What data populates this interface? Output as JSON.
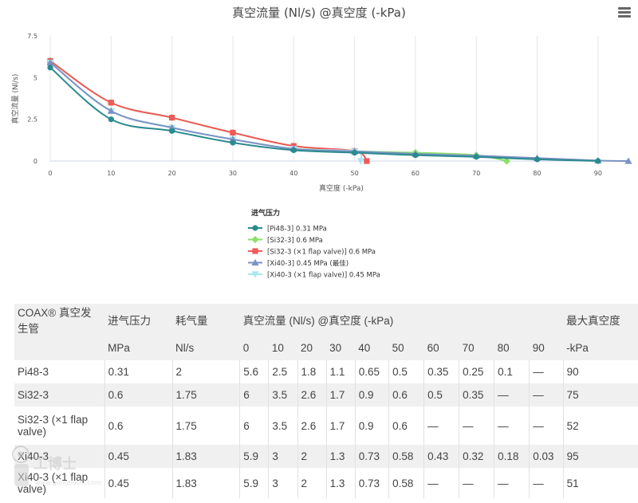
{
  "chart_data": {
    "type": "line",
    "title": "真空流量 (Nl/s) @真空度 (-kPa)",
    "xlabel": "真空度 (-kPa)",
    "ylabel": "真空流量 (Nl/s)",
    "xlim": [
      0,
      95
    ],
    "ylim": [
      0,
      7.5
    ],
    "xticks": [
      0,
      10,
      20,
      30,
      40,
      50,
      60,
      70,
      80,
      90
    ],
    "yticks": [
      0,
      2.5,
      5,
      7.5
    ],
    "grid": "vertical",
    "legend_title": "进气压力",
    "legend_position": "bottom-center",
    "series": [
      {
        "name": "[Pi48-3] 0.31 MPa",
        "color": "#2a8a8f",
        "marker": "circle",
        "x": [
          0,
          10,
          20,
          30,
          40,
          50,
          60,
          70,
          80,
          90
        ],
        "y": [
          5.6,
          2.5,
          1.8,
          1.1,
          0.65,
          0.5,
          0.35,
          0.25,
          0.1,
          0
        ]
      },
      {
        "name": "[Si32-3] 0.6 MPa",
        "color": "#8be06a",
        "marker": "diamond",
        "x": [
          0,
          10,
          20,
          30,
          40,
          50,
          60,
          70,
          75
        ],
        "y": [
          6,
          3.5,
          2.6,
          1.7,
          0.9,
          0.6,
          0.5,
          0.35,
          0
        ]
      },
      {
        "name": "[Si32-3 (×1 flap valve)] 0.6 MPa",
        "color": "#ef5a5a",
        "marker": "square",
        "x": [
          0,
          10,
          20,
          30,
          40,
          50,
          52
        ],
        "y": [
          6,
          3.5,
          2.6,
          1.7,
          0.9,
          0.6,
          0
        ]
      },
      {
        "name": "[Xi40-3] 0.45 MPa (最佳)",
        "color": "#7a92c4",
        "marker": "triangle",
        "x": [
          0,
          10,
          20,
          30,
          40,
          50,
          60,
          70,
          80,
          90,
          95
        ],
        "y": [
          5.9,
          3,
          2,
          1.3,
          0.73,
          0.58,
          0.43,
          0.32,
          0.18,
          0.03,
          0
        ]
      },
      {
        "name": "[Xi40-3 (×1 flap valve)] 0.45 MPa",
        "color": "#a9e6ee",
        "marker": "triangle-down",
        "x": [
          0,
          10,
          20,
          30,
          40,
          50,
          51
        ],
        "y": [
          5.9,
          3,
          2,
          1.3,
          0.73,
          0.58,
          0
        ]
      }
    ]
  },
  "ui": {
    "menu_icon": "hamburger-menu-icon",
    "watermark_text": "工博士",
    "watermark_url": "www.gongboshi.com"
  },
  "table": {
    "header_row1": [
      "COAX® 真空发生管",
      "进气压力",
      "耗气量",
      "真空流量 (Nl/s) @真空度 (-kPa)",
      "最大真空度"
    ],
    "header_row2": [
      "",
      "MPa",
      "Nl/s",
      "0",
      "10",
      "20",
      "30",
      "40",
      "50",
      "60",
      "70",
      "80",
      "90",
      "-kPa"
    ],
    "rows": [
      [
        "Pi48-3",
        "0.31",
        "2",
        "5.6",
        "2.5",
        "1.8",
        "1.1",
        "0.65",
        "0.5",
        "0.35",
        "0.25",
        "0.1",
        "—",
        "90"
      ],
      [
        "Si32-3",
        "0.6",
        "1.75",
        "6",
        "3.5",
        "2.6",
        "1.7",
        "0.9",
        "0.6",
        "0.5",
        "0.35",
        "—",
        "—",
        "75"
      ],
      [
        "Si32-3 (×1 flap valve)",
        "0.6",
        "1.75",
        "6",
        "3.5",
        "2.6",
        "1.7",
        "0.9",
        "0.6",
        "—",
        "—",
        "—",
        "—",
        "52"
      ],
      [
        "Xi40-3",
        "0.45",
        "1.83",
        "5.9",
        "3",
        "2",
        "1.3",
        "0.73",
        "0.58",
        "0.43",
        "0.32",
        "0.18",
        "0.03",
        "95"
      ],
      [
        "Xi40-3 (×1 flap valve)",
        "0.45",
        "1.83",
        "5.9",
        "3",
        "2",
        "1.3",
        "0.73",
        "0.58",
        "—",
        "—",
        "—",
        "—",
        "51"
      ]
    ]
  }
}
